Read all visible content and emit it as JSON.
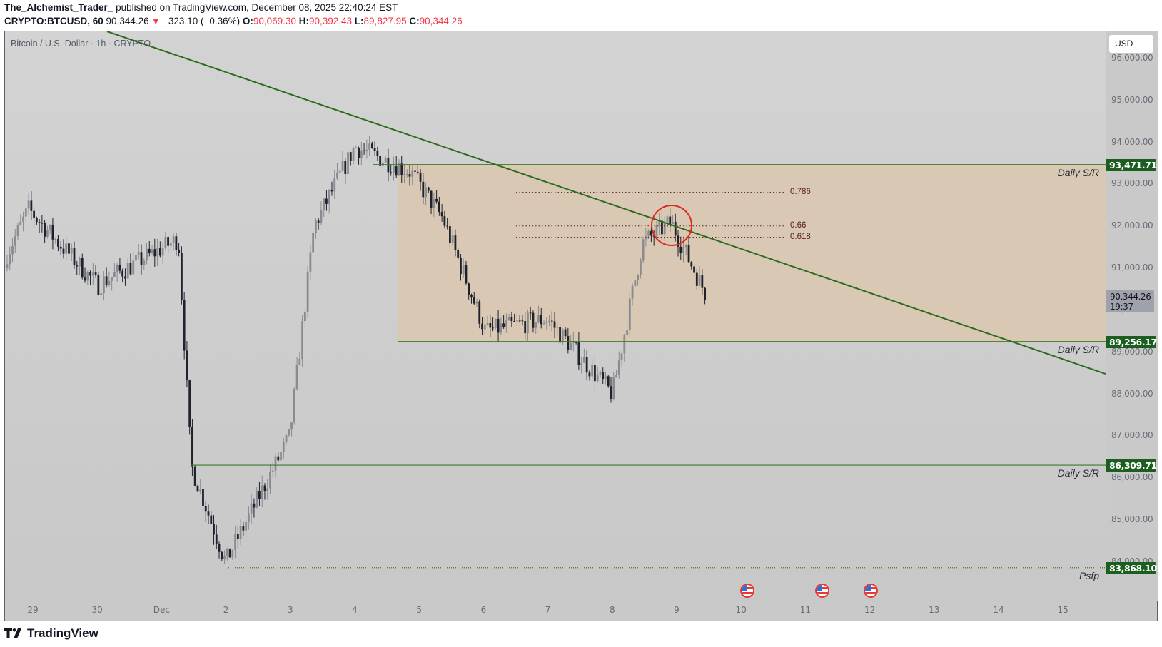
{
  "header": {
    "author": "The_Alchemist_Trader_",
    "published": "published on TradingView.com, December 08, 2025 22:40:24 EST",
    "symbol": "CRYPTO:BTCUSD, 60",
    "last": "90,344.26",
    "change_arrow": "▼",
    "change": "−323.10 (−0.36%)",
    "o_label": "O:",
    "o": "90,069.30",
    "h_label": "H:",
    "h": "90,392.43",
    "l_label": "L:",
    "l": "89,827.95",
    "c_label": "C:",
    "c": "90,344.26"
  },
  "chart": {
    "legend": "Bitcoin / U.S. Dollar · 1h · CRYPTO",
    "currency": "USD",
    "colors": {
      "bull": "#8a8b90",
      "bear": "#1e222d",
      "trendline": "#2e6b1f",
      "sr_line": "#3c7a2a",
      "zone": "#d9c8b3",
      "label_green": "#1b5e20",
      "circle": "#e0281e",
      "fib": "#5a1a1a"
    },
    "price_ticks": [
      "96,000.00",
      "95,000.00",
      "94,000.00",
      "93,000.00",
      "92,000.00",
      "91,000.00",
      "90,000.00",
      "89,000.00",
      "88,000.00",
      "87,000.00",
      "86,000.00",
      "85,000.00",
      "84,000.00"
    ],
    "price_tick_values": [
      96000,
      95000,
      94000,
      93000,
      92000,
      91000,
      90000,
      89000,
      88000,
      87000,
      86000,
      85000,
      84000
    ],
    "levels": [
      {
        "price": 93471.71,
        "label": "93,471.71",
        "text": "Daily S/R"
      },
      {
        "price": 89256.17,
        "label": "89,256.17",
        "text": "Daily S/R"
      },
      {
        "price": 86309.71,
        "label": "86,309.71",
        "text": "Daily S/R"
      },
      {
        "price": 83868.1,
        "label": "83,868.10",
        "text": "Psfp"
      }
    ],
    "current_price_label": "90,344.26",
    "current_countdown": "19:37",
    "fib_levels": [
      {
        "label": "0.786",
        "price": 92810
      },
      {
        "label": "0.66",
        "price": 92010
      },
      {
        "label": "0.618",
        "price": 91740
      }
    ],
    "date_labels": [
      "29",
      "30",
      "Dec",
      "2",
      "3",
      "4",
      "5",
      "6",
      "7",
      "8",
      "9",
      "10",
      "11",
      "12",
      "13",
      "14",
      "15"
    ],
    "event_flags": [
      "10",
      "11",
      "12"
    ]
  },
  "branding": {
    "logo_text": "TradingView"
  },
  "chart_data": {
    "type": "candlestick",
    "title": "Bitcoin / U.S. Dollar · 1h · CRYPTO",
    "xlabel": "",
    "ylabel": "USD",
    "ylim": [
      83500,
      96500
    ],
    "x_ticks": [
      "29",
      "30",
      "Dec",
      "2",
      "3",
      "4",
      "5",
      "6",
      "7",
      "8",
      "9",
      "10",
      "11",
      "12",
      "13",
      "14",
      "15"
    ],
    "key_points": [
      {
        "time": "Nov 29",
        "price": 91000
      },
      {
        "time": "Nov 29 late",
        "price": 92400
      },
      {
        "time": "Nov 30",
        "price": 90600
      },
      {
        "time": "Dec 1 early",
        "price": 91700
      },
      {
        "time": "Dec 1",
        "price": 86300
      },
      {
        "time": "Dec 2",
        "price": 84000
      },
      {
        "time": "Dec 3",
        "price": 87000
      },
      {
        "time": "Dec 3 late",
        "price": 92000
      },
      {
        "time": "Dec 4",
        "price": 93900
      },
      {
        "time": "Dec 5",
        "price": 93300
      },
      {
        "time": "Dec 5 late",
        "price": 92200
      },
      {
        "time": "Dec 6",
        "price": 89500
      },
      {
        "time": "Dec 7",
        "price": 89800
      },
      {
        "time": "Dec 8",
        "price": 88000
      },
      {
        "time": "Dec 8 late",
        "price": 91600
      },
      {
        "time": "Dec 9",
        "price": 92100
      },
      {
        "time": "Dec 9 late",
        "price": 90344.26
      }
    ],
    "annotations": [
      "Daily S/R 93,471.71",
      "Daily S/R 89,256.17",
      "Daily S/R 86,309.71",
      "Psfp 83,868.10",
      "Fib 0.786",
      "Fib 0.66",
      "Fib 0.618",
      "Descending trendline",
      "Red circle at trendline rejection"
    ]
  }
}
